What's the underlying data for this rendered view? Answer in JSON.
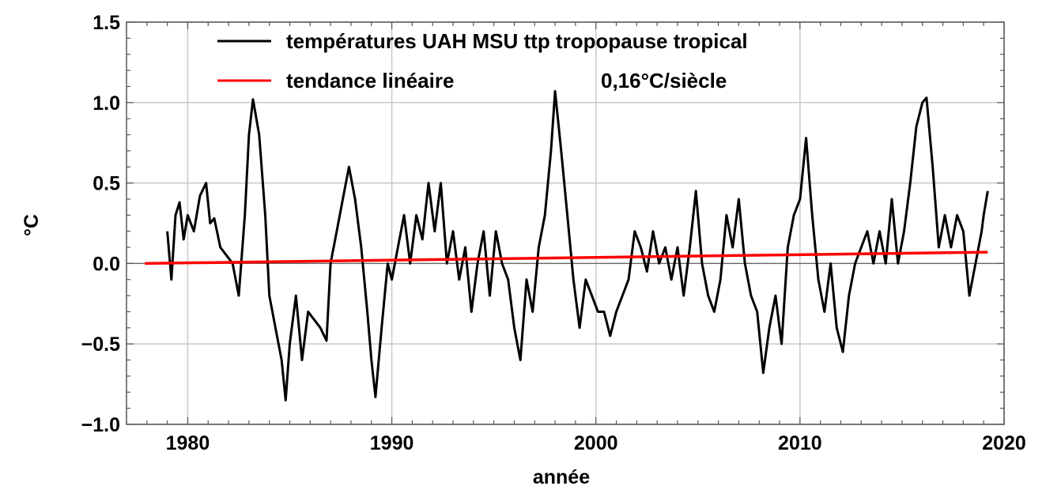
{
  "chart_data": {
    "type": "line",
    "title": "",
    "xlabel": "année",
    "ylabel": "°C",
    "xlim": [
      1977.0,
      2020.0
    ],
    "ylim": [
      -1.0,
      1.5
    ],
    "grid": true,
    "x_ticks": [
      1980,
      1990,
      2000,
      2010,
      2020
    ],
    "x_tick_labels": [
      "1980",
      "1990",
      "2000",
      "2010",
      "2020"
    ],
    "y_ticks": [
      -1.0,
      -0.5,
      0.0,
      0.5,
      1.0,
      1.5
    ],
    "y_tick_labels": [
      "−1.0",
      "−0.5",
      "0.0",
      "0.5",
      "1.0",
      "1.5"
    ],
    "legend_position": "top",
    "series": [
      {
        "name": "températures UAH MSU ttp tropopause tropical",
        "color": "#000000",
        "points": [
          [
            1979.0,
            0.2
          ],
          [
            1979.2,
            -0.1
          ],
          [
            1979.4,
            0.3
          ],
          [
            1979.6,
            0.38
          ],
          [
            1979.8,
            0.15
          ],
          [
            1980.0,
            0.3
          ],
          [
            1980.3,
            0.2
          ],
          [
            1980.6,
            0.42
          ],
          [
            1980.9,
            0.5
          ],
          [
            1981.1,
            0.25
          ],
          [
            1981.3,
            0.28
          ],
          [
            1981.6,
            0.1
          ],
          [
            1981.9,
            0.05
          ],
          [
            1982.2,
            0.0
          ],
          [
            1982.5,
            -0.2
          ],
          [
            1982.8,
            0.3
          ],
          [
            1983.0,
            0.8
          ],
          [
            1983.2,
            1.02
          ],
          [
            1983.5,
            0.8
          ],
          [
            1983.8,
            0.3
          ],
          [
            1984.0,
            -0.2
          ],
          [
            1984.3,
            -0.4
          ],
          [
            1984.6,
            -0.6
          ],
          [
            1984.8,
            -0.85
          ],
          [
            1985.0,
            -0.5
          ],
          [
            1985.3,
            -0.2
          ],
          [
            1985.6,
            -0.6
          ],
          [
            1985.9,
            -0.3
          ],
          [
            1986.2,
            -0.35
          ],
          [
            1986.5,
            -0.4
          ],
          [
            1986.8,
            -0.48
          ],
          [
            1987.0,
            0.0
          ],
          [
            1987.3,
            0.2
          ],
          [
            1987.6,
            0.4
          ],
          [
            1987.9,
            0.6
          ],
          [
            1988.2,
            0.4
          ],
          [
            1988.5,
            0.1
          ],
          [
            1988.8,
            -0.3
          ],
          [
            1989.0,
            -0.6
          ],
          [
            1989.2,
            -0.83
          ],
          [
            1989.5,
            -0.4
          ],
          [
            1989.8,
            0.0
          ],
          [
            1990.0,
            -0.1
          ],
          [
            1990.3,
            0.1
          ],
          [
            1990.6,
            0.3
          ],
          [
            1990.9,
            0.0
          ],
          [
            1991.2,
            0.3
          ],
          [
            1991.5,
            0.15
          ],
          [
            1991.8,
            0.5
          ],
          [
            1992.1,
            0.2
          ],
          [
            1992.4,
            0.5
          ],
          [
            1992.7,
            0.0
          ],
          [
            1993.0,
            0.2
          ],
          [
            1993.3,
            -0.1
          ],
          [
            1993.6,
            0.1
          ],
          [
            1993.9,
            -0.3
          ],
          [
            1994.2,
            0.0
          ],
          [
            1994.5,
            0.2
          ],
          [
            1994.8,
            -0.2
          ],
          [
            1995.1,
            0.2
          ],
          [
            1995.4,
            0.0
          ],
          [
            1995.7,
            -0.1
          ],
          [
            1996.0,
            -0.4
          ],
          [
            1996.3,
            -0.6
          ],
          [
            1996.6,
            -0.1
          ],
          [
            1996.9,
            -0.3
          ],
          [
            1997.2,
            0.1
          ],
          [
            1997.5,
            0.3
          ],
          [
            1997.8,
            0.7
          ],
          [
            1998.0,
            1.07
          ],
          [
            1998.3,
            0.7
          ],
          [
            1998.6,
            0.3
          ],
          [
            1998.9,
            -0.1
          ],
          [
            1999.2,
            -0.4
          ],
          [
            1999.5,
            -0.1
          ],
          [
            1999.8,
            -0.2
          ],
          [
            2000.1,
            -0.3
          ],
          [
            2000.4,
            -0.3
          ],
          [
            2000.7,
            -0.45
          ],
          [
            2001.0,
            -0.3
          ],
          [
            2001.3,
            -0.2
          ],
          [
            2001.6,
            -0.1
          ],
          [
            2001.9,
            0.2
          ],
          [
            2002.2,
            0.1
          ],
          [
            2002.5,
            -0.05
          ],
          [
            2002.8,
            0.2
          ],
          [
            2003.1,
            0.0
          ],
          [
            2003.4,
            0.1
          ],
          [
            2003.7,
            -0.1
          ],
          [
            2004.0,
            0.1
          ],
          [
            2004.3,
            -0.2
          ],
          [
            2004.6,
            0.1
          ],
          [
            2004.9,
            0.45
          ],
          [
            2005.2,
            0.0
          ],
          [
            2005.5,
            -0.2
          ],
          [
            2005.8,
            -0.3
          ],
          [
            2006.1,
            -0.1
          ],
          [
            2006.4,
            0.3
          ],
          [
            2006.7,
            0.1
          ],
          [
            2007.0,
            0.4
          ],
          [
            2007.3,
            0.0
          ],
          [
            2007.6,
            -0.2
          ],
          [
            2007.9,
            -0.3
          ],
          [
            2008.2,
            -0.68
          ],
          [
            2008.5,
            -0.4
          ],
          [
            2008.8,
            -0.2
          ],
          [
            2009.1,
            -0.5
          ],
          [
            2009.4,
            0.1
          ],
          [
            2009.7,
            0.3
          ],
          [
            2010.0,
            0.4
          ],
          [
            2010.3,
            0.78
          ],
          [
            2010.6,
            0.3
          ],
          [
            2010.9,
            -0.1
          ],
          [
            2011.2,
            -0.3
          ],
          [
            2011.5,
            0.0
          ],
          [
            2011.8,
            -0.4
          ],
          [
            2012.1,
            -0.55
          ],
          [
            2012.4,
            -0.2
          ],
          [
            2012.7,
            0.0
          ],
          [
            2013.0,
            0.1
          ],
          [
            2013.3,
            0.2
          ],
          [
            2013.6,
            0.0
          ],
          [
            2013.9,
            0.2
          ],
          [
            2014.2,
            0.0
          ],
          [
            2014.5,
            0.4
          ],
          [
            2014.8,
            0.0
          ],
          [
            2015.1,
            0.2
          ],
          [
            2015.4,
            0.5
          ],
          [
            2015.7,
            0.85
          ],
          [
            2016.0,
            1.0
          ],
          [
            2016.2,
            1.03
          ],
          [
            2016.5,
            0.6
          ],
          [
            2016.8,
            0.1
          ],
          [
            2017.1,
            0.3
          ],
          [
            2017.4,
            0.1
          ],
          [
            2017.7,
            0.3
          ],
          [
            2018.0,
            0.2
          ],
          [
            2018.3,
            -0.2
          ],
          [
            2018.6,
            0.0
          ],
          [
            2018.9,
            0.2
          ],
          [
            2019.0,
            0.3
          ],
          [
            2019.2,
            0.45
          ]
        ]
      },
      {
        "name": "tendance linéaire",
        "annotation": "0,16°C/siècle",
        "color": "#ff0000",
        "points": [
          [
            1977.9,
            0.0
          ],
          [
            2019.2,
            0.07
          ]
        ]
      }
    ]
  }
}
